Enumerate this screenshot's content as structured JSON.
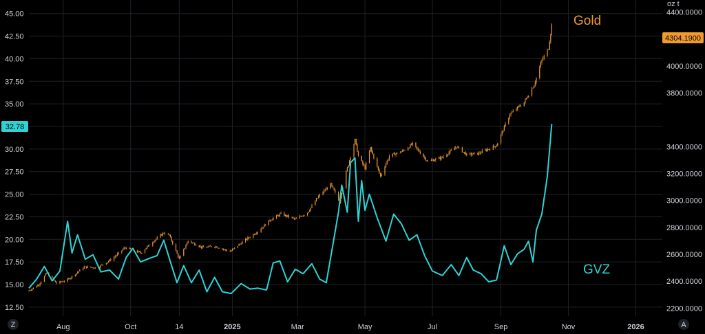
{
  "colors": {
    "background": "#000000",
    "grid": "#1e2228",
    "gold": "#f29a2e",
    "gvz": "#2fd3d3",
    "axis_text": "#d1d4dc",
    "badge_text_dark": "#000000"
  },
  "unit_label": "oz t",
  "buttons": {
    "left": "Z",
    "right": "A"
  },
  "chart_data": {
    "type": "line",
    "x_ticks": [
      {
        "label": "Aug",
        "date": "2024-08-01",
        "bold": false
      },
      {
        "label": "Oct",
        "date": "2024-10-01",
        "bold": false
      },
      {
        "label": "14",
        "date": "2024-11-14",
        "bold": false
      },
      {
        "label": "2025",
        "date": "2025-01-01",
        "bold": true
      },
      {
        "label": "Mar",
        "date": "2025-03-01",
        "bold": false
      },
      {
        "label": "May",
        "date": "2025-05-01",
        "bold": false
      },
      {
        "label": "Jul",
        "date": "2025-07-01",
        "bold": false
      },
      {
        "label": "Sep",
        "date": "2025-09-01",
        "bold": false
      },
      {
        "label": "Nov",
        "date": "2025-11-01",
        "bold": false
      },
      {
        "label": "2026",
        "date": "2026-01-01",
        "bold": true
      }
    ],
    "xlim": [
      "2024-07-01",
      "2026-01-25"
    ],
    "left_axis": {
      "ticks": [
        "45.00",
        "42.50",
        "40.00",
        "37.50",
        "35.00",
        "30.00",
        "27.50",
        "25.00",
        "22.50",
        "20.00",
        "17.50",
        "15.00",
        "12.50"
      ],
      "ylim": [
        11.5,
        46.5
      ]
    },
    "right_axis": {
      "ticks": [
        "4400.0000",
        "4200.0000",
        "4000.0000",
        "3800.0000",
        "3400.0000",
        "3200.0000",
        "3000.0000",
        "2800.0000",
        "2600.0000",
        "2400.0000",
        "2200.0000"
      ],
      "ylim": [
        2140,
        4490
      ]
    },
    "series": [
      {
        "name": "Gold",
        "axis": "right",
        "style": "candle",
        "last_value": "4304.1900",
        "points": [
          [
            "2024-07-01",
            2330
          ],
          [
            "2024-07-10",
            2375
          ],
          [
            "2024-07-17",
            2460
          ],
          [
            "2024-07-26",
            2385
          ],
          [
            "2024-08-05",
            2410
          ],
          [
            "2024-08-20",
            2505
          ],
          [
            "2024-09-01",
            2500
          ],
          [
            "2024-09-15",
            2570
          ],
          [
            "2024-09-26",
            2650
          ],
          [
            "2024-10-10",
            2610
          ],
          [
            "2024-10-22",
            2700
          ],
          [
            "2024-10-31",
            2760
          ],
          [
            "2024-11-05",
            2740
          ],
          [
            "2024-11-14",
            2565
          ],
          [
            "2024-11-22",
            2700
          ],
          [
            "2024-12-05",
            2650
          ],
          [
            "2024-12-16",
            2660
          ],
          [
            "2024-12-30",
            2620
          ],
          [
            "2025-01-10",
            2690
          ],
          [
            "2025-01-24",
            2770
          ],
          [
            "2025-02-05",
            2860
          ],
          [
            "2025-02-14",
            2900
          ],
          [
            "2025-02-27",
            2860
          ],
          [
            "2025-03-10",
            2910
          ],
          [
            "2025-03-20",
            3030
          ],
          [
            "2025-03-31",
            3120
          ],
          [
            "2025-04-08",
            2990
          ],
          [
            "2025-04-14",
            3210
          ],
          [
            "2025-04-22",
            3450
          ],
          [
            "2025-04-25",
            3330
          ],
          [
            "2025-05-01",
            3240
          ],
          [
            "2025-05-06",
            3390
          ],
          [
            "2025-05-15",
            3180
          ],
          [
            "2025-05-23",
            3330
          ],
          [
            "2025-06-05",
            3370
          ],
          [
            "2025-06-13",
            3420
          ],
          [
            "2025-06-27",
            3290
          ],
          [
            "2025-07-10",
            3320
          ],
          [
            "2025-07-23",
            3400
          ],
          [
            "2025-08-01",
            3340
          ],
          [
            "2025-08-12",
            3350
          ],
          [
            "2025-08-28",
            3410
          ],
          [
            "2025-09-09",
            3640
          ],
          [
            "2025-09-22",
            3730
          ],
          [
            "2025-10-01",
            3860
          ],
          [
            "2025-10-08",
            4040
          ],
          [
            "2025-10-14",
            4130
          ],
          [
            "2025-10-17",
            4304
          ]
        ]
      },
      {
        "name": "GVZ",
        "axis": "left",
        "style": "line",
        "last_value": "32.78",
        "points": [
          [
            "2024-07-01",
            14.6
          ],
          [
            "2024-07-08",
            15.6
          ],
          [
            "2024-07-15",
            17.0
          ],
          [
            "2024-07-22",
            15.4
          ],
          [
            "2024-07-29",
            16.5
          ],
          [
            "2024-08-05",
            22.0
          ],
          [
            "2024-08-09",
            18.5
          ],
          [
            "2024-08-14",
            20.5
          ],
          [
            "2024-08-21",
            17.8
          ],
          [
            "2024-08-28",
            18.3
          ],
          [
            "2024-09-04",
            16.4
          ],
          [
            "2024-09-12",
            16.6
          ],
          [
            "2024-09-20",
            15.6
          ],
          [
            "2024-09-27",
            18.0
          ],
          [
            "2024-10-03",
            19.0
          ],
          [
            "2024-10-10",
            17.5
          ],
          [
            "2024-10-18",
            17.9
          ],
          [
            "2024-10-25",
            18.2
          ],
          [
            "2024-10-31",
            19.9
          ],
          [
            "2024-11-06",
            17.5
          ],
          [
            "2024-11-12",
            15.2
          ],
          [
            "2024-11-18",
            17.1
          ],
          [
            "2024-11-25",
            15.2
          ],
          [
            "2024-12-02",
            16.6
          ],
          [
            "2024-12-09",
            14.2
          ],
          [
            "2024-12-16",
            15.8
          ],
          [
            "2024-12-23",
            14.2
          ],
          [
            "2024-12-31",
            14.0
          ],
          [
            "2025-01-09",
            15.1
          ],
          [
            "2025-01-17",
            14.5
          ],
          [
            "2025-01-24",
            14.6
          ],
          [
            "2025-02-01",
            14.4
          ],
          [
            "2025-02-07",
            17.4
          ],
          [
            "2025-02-13",
            17.6
          ],
          [
            "2025-02-20",
            15.3
          ],
          [
            "2025-02-27",
            16.7
          ],
          [
            "2025-03-06",
            16.2
          ],
          [
            "2025-03-14",
            17.3
          ],
          [
            "2025-03-21",
            15.6
          ],
          [
            "2025-03-27",
            15.2
          ],
          [
            "2025-04-01",
            18.7
          ],
          [
            "2025-04-07",
            23.0
          ],
          [
            "2025-04-10",
            26.0
          ],
          [
            "2025-04-15",
            23.0
          ],
          [
            "2025-04-18",
            28.5
          ],
          [
            "2025-04-22",
            29.0
          ],
          [
            "2025-04-25",
            22.0
          ],
          [
            "2025-04-28",
            26.5
          ],
          [
            "2025-05-01",
            23.2
          ],
          [
            "2025-05-05",
            25.0
          ],
          [
            "2025-05-12",
            22.4
          ],
          [
            "2025-05-20",
            19.8
          ],
          [
            "2025-05-27",
            22.8
          ],
          [
            "2025-06-03",
            21.7
          ],
          [
            "2025-06-10",
            19.9
          ],
          [
            "2025-06-17",
            20.5
          ],
          [
            "2025-06-24",
            18.2
          ],
          [
            "2025-07-01",
            16.5
          ],
          [
            "2025-07-10",
            16.0
          ],
          [
            "2025-07-18",
            17.2
          ],
          [
            "2025-07-25",
            16.0
          ],
          [
            "2025-08-01",
            18.0
          ],
          [
            "2025-08-07",
            16.6
          ],
          [
            "2025-08-14",
            16.2
          ],
          [
            "2025-08-21",
            15.3
          ],
          [
            "2025-08-28",
            15.5
          ],
          [
            "2025-09-04",
            19.3
          ],
          [
            "2025-09-10",
            17.2
          ],
          [
            "2025-09-16",
            18.4
          ],
          [
            "2025-09-22",
            18.9
          ],
          [
            "2025-09-26",
            19.8
          ],
          [
            "2025-09-30",
            17.5
          ],
          [
            "2025-10-03",
            21.0
          ],
          [
            "2025-10-08",
            22.8
          ],
          [
            "2025-10-13",
            27.0
          ],
          [
            "2025-10-17",
            32.78
          ]
        ]
      }
    ]
  }
}
